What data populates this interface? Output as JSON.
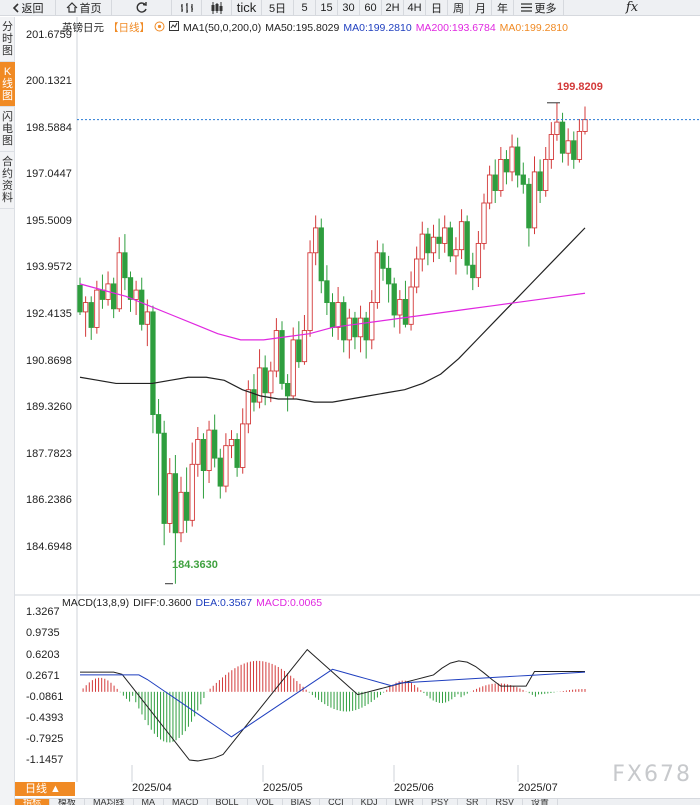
{
  "toolbar": {
    "back_label": "返回",
    "home_label": "首页",
    "tick_label": "tick",
    "periods": [
      "5日",
      "5",
      "15",
      "30",
      "60",
      "2H",
      "4H",
      "日",
      "周",
      "月",
      "年"
    ],
    "more_label": "更多",
    "fx_label": "fx"
  },
  "side_tabs": [
    "分时图",
    "K线图",
    "闪电图",
    "合约资料"
  ],
  "legend": {
    "title": "英镑日元",
    "period": "【日线】",
    "ma_params": "MA1(50,0,200,0)",
    "ma50": "MA50:195.8029",
    "ma0": "MA0:199.2810",
    "ma200": "MA200:193.6784",
    "ma0b": "MA0:199.2810"
  },
  "macd_legend": {
    "name": "MACD(13,8,9)",
    "diff": "DIFF:0.3600",
    "dea": "DEA:0.3567",
    "macd": "MACD:0.0065"
  },
  "price_axis": [
    "201.6759",
    "200.1321",
    "198.5884",
    "197.0447",
    "195.5009",
    "193.9572",
    "192.4135",
    "190.8698",
    "189.3260",
    "187.7823",
    "186.2386",
    "184.6948"
  ],
  "macd_axis": [
    "1.3267",
    "0.9735",
    "0.6203",
    "0.2671",
    "-0.0861",
    "-0.4393",
    "-0.7925",
    "-1.1457"
  ],
  "date_labels": [
    "2025/04",
    "2025/05",
    "2025/06",
    "2025/07"
  ],
  "high_label": "199.8209",
  "low_label": "184.3630",
  "bottom_label": "日线 ▲",
  "bottom_tabs": [
    "指标",
    "模板",
    "MA均线",
    "MA",
    "MACD",
    "BOLL",
    "VOL",
    "BIAS",
    "CCI",
    "KDJ",
    "LWR",
    "PSY",
    "SR",
    "RSV",
    "设置"
  ],
  "watermark": "FX678",
  "colors": {
    "up": "#d33a3a",
    "down": "#2e9e3e",
    "ma50": "#222222",
    "ma200": "#e028e0",
    "dea": "#1f3fbf",
    "accent": "#f08a24"
  },
  "chart_data": {
    "type": "candlestick",
    "title": "英镑日元 日线",
    "ylim": [
      184.0,
      202.0
    ],
    "high": 199.8209,
    "low": 184.363,
    "last_close": 199.281,
    "candles": [
      [
        193.95,
        193.1,
        194.2,
        193.0
      ],
      [
        193.1,
        193.4,
        193.6,
        192.3
      ],
      [
        193.4,
        192.6,
        193.6,
        192.2
      ],
      [
        192.6,
        193.8,
        194.1,
        192.4
      ],
      [
        193.8,
        193.5,
        194.3,
        193.2
      ],
      [
        193.5,
        194.0,
        194.4,
        193.3
      ],
      [
        194.0,
        193.2,
        194.2,
        192.9
      ],
      [
        193.2,
        195.0,
        195.5,
        193.1
      ],
      [
        195.0,
        194.2,
        195.6,
        193.8
      ],
      [
        194.2,
        193.5,
        194.4,
        193.1
      ],
      [
        193.5,
        193.8,
        194.1,
        193.0
      ],
      [
        193.8,
        192.7,
        194.2,
        192.5
      ],
      [
        192.7,
        193.1,
        193.5,
        192.0
      ],
      [
        193.1,
        189.8,
        193.3,
        189.2
      ],
      [
        189.8,
        189.2,
        190.3,
        187.2
      ],
      [
        189.2,
        186.3,
        189.6,
        185.6
      ],
      [
        186.3,
        187.9,
        188.4,
        186.0
      ],
      [
        187.9,
        186.0,
        188.5,
        184.36
      ],
      [
        186.0,
        187.3,
        187.8,
        185.7
      ],
      [
        187.3,
        186.4,
        188.1,
        186.0
      ],
      [
        186.4,
        188.2,
        188.9,
        186.2
      ],
      [
        188.2,
        189.0,
        189.4,
        187.8
      ],
      [
        189.0,
        188.0,
        189.2,
        187.1
      ],
      [
        188.0,
        189.3,
        189.6,
        187.6
      ],
      [
        189.3,
        188.4,
        189.8,
        188.1
      ],
      [
        188.4,
        187.5,
        188.7,
        187.1
      ],
      [
        187.5,
        188.8,
        189.2,
        187.3
      ],
      [
        188.8,
        189.0,
        189.3,
        188.4
      ],
      [
        189.0,
        188.1,
        189.2,
        187.8
      ],
      [
        188.1,
        189.5,
        190.0,
        187.9
      ],
      [
        189.5,
        190.6,
        190.9,
        189.2
      ],
      [
        190.6,
        190.2,
        191.1,
        189.9
      ],
      [
        190.2,
        191.3,
        191.9,
        190.0
      ],
      [
        191.3,
        190.5,
        191.7,
        190.1
      ],
      [
        190.5,
        191.2,
        191.5,
        190.2
      ],
      [
        191.2,
        192.5,
        192.9,
        191.0
      ],
      [
        192.5,
        190.8,
        192.8,
        190.6
      ],
      [
        190.8,
        190.4,
        191.1,
        189.9
      ],
      [
        190.4,
        192.2,
        192.6,
        190.3
      ],
      [
        192.2,
        191.5,
        192.8,
        191.3
      ],
      [
        191.5,
        192.5,
        193.0,
        191.4
      ],
      [
        192.5,
        195.0,
        195.4,
        192.3
      ],
      [
        195.0,
        195.8,
        196.2,
        194.6
      ],
      [
        195.8,
        194.1,
        196.1,
        193.7
      ],
      [
        194.1,
        193.4,
        194.6,
        193.0
      ],
      [
        193.4,
        192.6,
        193.7,
        192.3
      ],
      [
        192.6,
        193.4,
        193.9,
        192.2
      ],
      [
        193.4,
        192.2,
        193.6,
        191.8
      ],
      [
        192.2,
        192.9,
        193.2,
        191.6
      ],
      [
        192.9,
        192.3,
        193.1,
        191.9
      ],
      [
        192.3,
        192.9,
        193.3,
        191.8
      ],
      [
        192.9,
        192.2,
        193.1,
        191.6
      ],
      [
        192.2,
        193.4,
        193.8,
        191.9
      ],
      [
        193.4,
        195.0,
        195.4,
        193.2
      ],
      [
        195.0,
        194.5,
        195.3,
        194.1
      ],
      [
        194.5,
        194.0,
        194.9,
        193.4
      ],
      [
        194.0,
        193.0,
        194.2,
        192.6
      ],
      [
        193.0,
        193.5,
        193.8,
        192.4
      ],
      [
        193.5,
        192.7,
        194.1,
        192.6
      ],
      [
        192.7,
        193.9,
        194.4,
        192.5
      ],
      [
        193.9,
        194.8,
        195.2,
        193.7
      ],
      [
        194.8,
        195.6,
        196.0,
        194.4
      ],
      [
        195.6,
        195.0,
        195.8,
        194.6
      ],
      [
        195.0,
        195.5,
        195.9,
        194.7
      ],
      [
        195.5,
        195.3,
        196.1,
        194.8
      ],
      [
        195.3,
        195.8,
        196.2,
        195.0
      ],
      [
        195.8,
        194.9,
        196.0,
        194.7
      ],
      [
        194.9,
        195.1,
        195.5,
        194.3
      ],
      [
        195.1,
        196.0,
        196.4,
        194.8
      ],
      [
        196.0,
        194.6,
        196.2,
        194.3
      ],
      [
        194.6,
        194.2,
        195.0,
        193.8
      ],
      [
        194.2,
        195.3,
        195.7,
        193.9
      ],
      [
        195.3,
        196.6,
        196.9,
        195.1
      ],
      [
        196.6,
        197.5,
        197.8,
        196.4
      ],
      [
        197.5,
        197.0,
        198.0,
        196.6
      ],
      [
        197.0,
        198.0,
        198.4,
        196.8
      ],
      [
        198.0,
        197.6,
        198.3,
        197.2
      ],
      [
        197.6,
        198.4,
        198.8,
        197.3
      ],
      [
        198.4,
        197.5,
        198.7,
        197.1
      ],
      [
        197.5,
        197.2,
        197.9,
        196.9
      ],
      [
        197.2,
        195.8,
        197.4,
        195.2
      ],
      [
        195.8,
        197.6,
        198.1,
        195.6
      ],
      [
        197.6,
        197.0,
        198.0,
        196.6
      ],
      [
        197.0,
        198.0,
        198.4,
        196.8
      ],
      [
        198.0,
        198.8,
        199.2,
        197.7
      ],
      [
        198.8,
        199.2,
        199.82,
        198.6
      ],
      [
        199.2,
        198.2,
        199.5,
        197.9
      ],
      [
        198.2,
        198.6,
        199.0,
        197.8
      ],
      [
        198.6,
        198.0,
        198.9,
        197.7
      ],
      [
        198.0,
        198.9,
        199.3,
        197.9
      ],
      [
        198.9,
        199.28,
        199.7,
        198.8
      ]
    ],
    "ma50": [
      191.0,
      190.9,
      190.8,
      190.8,
      190.8,
      190.9,
      191.0,
      191.0,
      190.9,
      190.6,
      190.4,
      190.3,
      190.3,
      190.2,
      190.2,
      190.3,
      190.4,
      190.5,
      190.6,
      190.8,
      191.1,
      191.6,
      192.2,
      192.8,
      193.4,
      194.0,
      194.6,
      195.2,
      195.8
    ],
    "ma200": [
      194.0,
      193.8,
      193.6,
      193.3,
      193.0,
      192.7,
      192.4,
      192.2,
      192.2,
      192.3,
      192.4,
      192.6,
      192.7,
      192.8,
      192.9,
      193.0,
      193.1,
      193.2,
      193.3,
      193.4,
      193.5,
      193.6,
      193.7
    ],
    "macd": {
      "diff_last": 0.36,
      "dea_last": 0.3567,
      "macd_last": 0.0065,
      "ylim": [
        -1.3,
        1.4
      ]
    }
  }
}
